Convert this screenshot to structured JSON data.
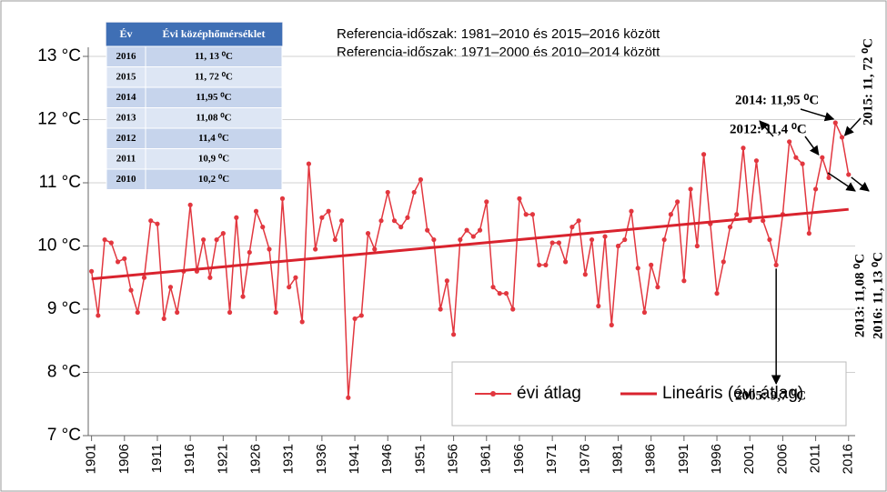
{
  "chart_data": {
    "type": "line",
    "reference_notes": [
      "Referencia-időszak: 1981–2010 és 2015–2016 között",
      "Referencia-időszak: 1971–2000 és 2010–2014 között"
    ],
    "x": [
      1901,
      1902,
      1903,
      1904,
      1905,
      1906,
      1907,
      1908,
      1909,
      1910,
      1911,
      1912,
      1913,
      1914,
      1915,
      1916,
      1917,
      1918,
      1919,
      1920,
      1921,
      1922,
      1923,
      1924,
      1925,
      1926,
      1927,
      1928,
      1929,
      1930,
      1931,
      1932,
      1933,
      1934,
      1935,
      1936,
      1937,
      1938,
      1939,
      1940,
      1941,
      1942,
      1943,
      1944,
      1945,
      1946,
      1947,
      1948,
      1949,
      1950,
      1951,
      1952,
      1953,
      1954,
      1955,
      1956,
      1957,
      1958,
      1959,
      1960,
      1961,
      1962,
      1963,
      1964,
      1965,
      1966,
      1967,
      1968,
      1969,
      1970,
      1971,
      1972,
      1973,
      1974,
      1975,
      1976,
      1977,
      1978,
      1979,
      1980,
      1981,
      1982,
      1983,
      1984,
      1985,
      1986,
      1987,
      1988,
      1989,
      1990,
      1991,
      1992,
      1993,
      1994,
      1995,
      1996,
      1997,
      1998,
      1999,
      2000,
      2001,
      2002,
      2003,
      2004,
      2005,
      2006,
      2007,
      2008,
      2009,
      2010,
      2011,
      2012,
      2013,
      2014,
      2015,
      2016
    ],
    "series": [
      {
        "name": "évi átlag",
        "color": "#e2373f",
        "markers": true,
        "values": [
          9.6,
          8.9,
          10.1,
          10.05,
          9.75,
          9.8,
          9.3,
          8.95,
          9.5,
          10.4,
          10.35,
          8.85,
          9.35,
          8.95,
          9.6,
          10.65,
          9.6,
          10.1,
          9.5,
          10.1,
          10.2,
          8.95,
          10.45,
          9.2,
          9.9,
          10.55,
          10.3,
          9.95,
          8.95,
          10.75,
          9.35,
          9.5,
          8.8,
          11.3,
          9.95,
          10.45,
          10.55,
          10.1,
          10.4,
          7.6,
          8.85,
          8.9,
          10.2,
          9.95,
          10.4,
          10.85,
          10.4,
          10.3,
          10.45,
          10.85,
          11.05,
          10.25,
          10.1,
          9.0,
          9.45,
          8.6,
          10.1,
          10.25,
          10.15,
          10.25,
          10.7,
          9.35,
          9.25,
          9.25,
          9.0,
          10.75,
          10.5,
          10.5,
          9.7,
          9.7,
          10.05,
          10.05,
          9.75,
          10.3,
          10.4,
          9.55,
          10.1,
          9.05,
          10.15,
          8.75,
          10.0,
          10.1,
          10.55,
          9.65,
          8.95,
          9.7,
          9.35,
          10.1,
          10.5,
          10.7,
          9.45,
          10.9,
          10.0,
          11.45,
          10.35,
          9.25,
          9.75,
          10.3,
          10.5,
          11.55,
          10.4,
          11.35,
          10.4,
          10.1,
          9.7,
          10.5,
          11.65,
          11.4,
          11.3,
          10.2,
          10.9,
          11.4,
          11.08,
          11.95,
          11.72,
          11.13
        ]
      },
      {
        "name": "Lineáris (évi átlag)",
        "color": "#d9232e",
        "markers": false,
        "x": [
          1901,
          2016
        ],
        "values": [
          9.48,
          10.58
        ]
      }
    ],
    "xlim": [
      1900.5,
      2017
    ],
    "ylim": [
      7,
      13
    ],
    "xticks": [
      1901,
      1906,
      1911,
      1916,
      1921,
      1926,
      1931,
      1936,
      1941,
      1946,
      1951,
      1956,
      1961,
      1966,
      1971,
      1976,
      1981,
      1986,
      1991,
      1996,
      2001,
      2006,
      2011,
      2016
    ],
    "yticks": [
      {
        "value": 7,
        "label": "7 °C"
      },
      {
        "value": 8,
        "label": "8 °C"
      },
      {
        "value": 9,
        "label": "9 °C"
      },
      {
        "value": 10,
        "label": "10 °C"
      },
      {
        "value": 11,
        "label": "11 °C"
      },
      {
        "value": 12,
        "label": "12 °C"
      },
      {
        "value": 13,
        "label": "13 °C"
      }
    ],
    "grid": true,
    "legend": "lower right",
    "annotations": [
      "2014: 11,95 ⁰C",
      "2012: 11,4 ⁰C",
      "2005: 9,7 ⁰C",
      "2015: 11, 72 ⁰C",
      "2013: 11,08 ⁰C",
      "2016: 11, 13 ⁰C"
    ],
    "table": {
      "columns": [
        "Év",
        "Évi középhőmérséklet"
      ],
      "rows": [
        [
          "2016",
          "11, 13 ⁰C"
        ],
        [
          "2015",
          "11, 72 ⁰C"
        ],
        [
          "2014",
          "11,95 ⁰C"
        ],
        [
          "2013",
          "11,08 ⁰C"
        ],
        [
          "2012",
          "11,4 ⁰C"
        ],
        [
          "2011",
          "10,9 ⁰C"
        ],
        [
          "2010",
          "10,2 ⁰C"
        ]
      ]
    }
  }
}
